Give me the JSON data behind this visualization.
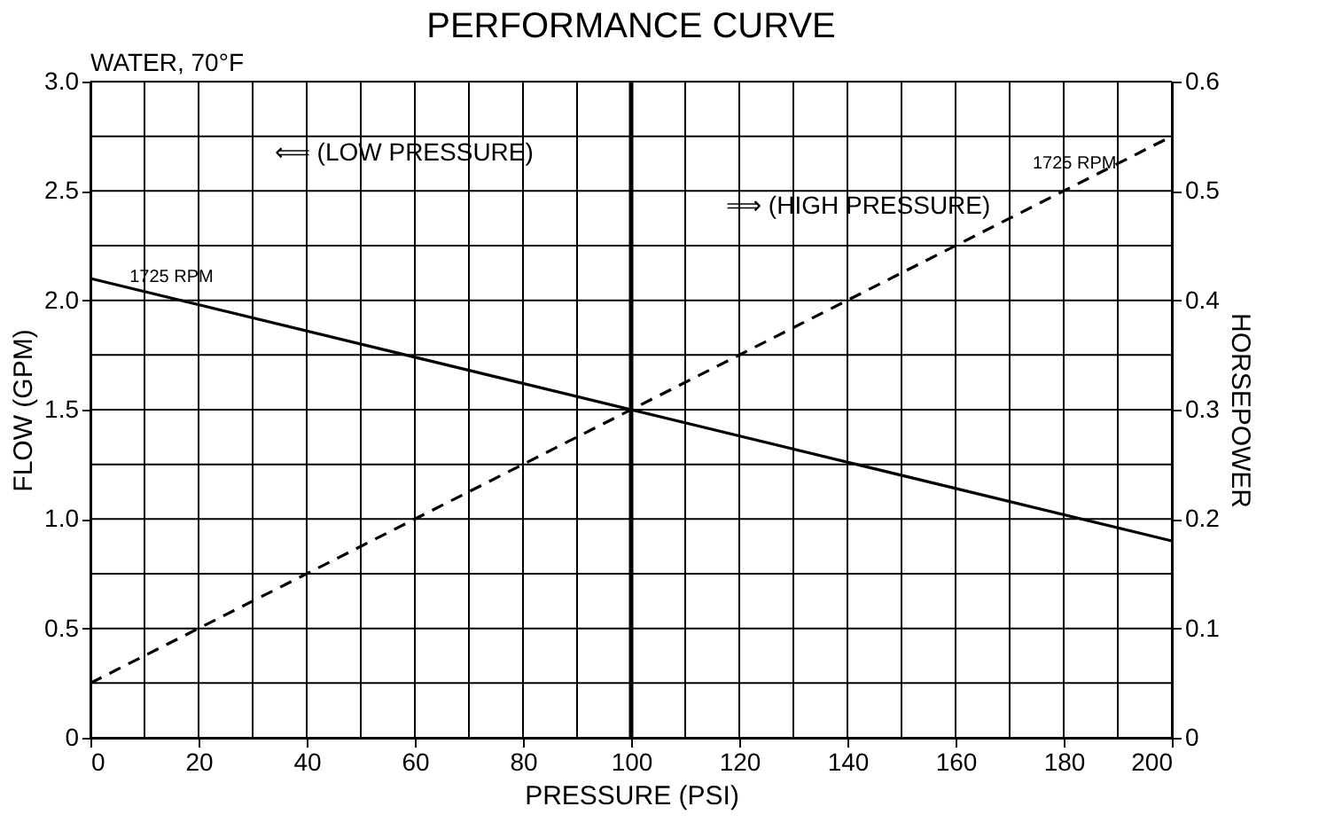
{
  "chart_data": {
    "type": "line",
    "title": "PERFORMANCE CURVE",
    "xlabel": "PRESSURE (PSI)",
    "ylabel": "FLOW (GPM)",
    "y2label": "HORSEPOWER",
    "x": [
      0,
      200
    ],
    "series": [
      {
        "color": "#000000",
        "values": [
          2.1,
          0.9
        ],
        "line_style": "solid"
      },
      {
        "color": "#000000",
        "values": [
          0.05,
          0.55
        ],
        "axis": "y2",
        "line_style": "dashed"
      }
    ],
    "xlim": [
      0,
      200
    ],
    "xticks": [
      0,
      {
        "value": 10,
        "label": null
      },
      20,
      {
        "value": 30,
        "label": null
      },
      40,
      {
        "value": 50,
        "label": null
      },
      60,
      {
        "value": 70,
        "label": null
      },
      80,
      {
        "value": 90,
        "label": null
      },
      100,
      {
        "value": 110,
        "label": null
      },
      120,
      {
        "value": 130,
        "label": null
      },
      140,
      {
        "value": 150,
        "label": null
      },
      160,
      {
        "value": 170,
        "label": null
      },
      180,
      {
        "value": 190,
        "label": null
      },
      200
    ],
    "ylim": [
      0,
      3
    ],
    "yticks": [
      0,
      {
        "value": 0.25,
        "label": null
      },
      0.5,
      {
        "value": 0.75,
        "label": null
      },
      {
        "value": 1,
        "label": "1.0"
      },
      {
        "value": 1.25,
        "label": null
      },
      1.5,
      {
        "value": 1.75,
        "label": null
      },
      {
        "value": 2,
        "label": "2.0"
      },
      {
        "value": 2.25,
        "label": null
      },
      2.5,
      {
        "value": 2.75,
        "label": null
      },
      {
        "value": 3,
        "label": "3.0"
      }
    ],
    "y2lim": [
      0,
      0.6
    ],
    "y2ticks": [
      0,
      0.1,
      0.2,
      0.3,
      0.4,
      0.5,
      0.6
    ],
    "grid": true,
    "ref_lines": [
      {
        "axis": "x",
        "value": 100
      }
    ],
    "annotations": [
      "WATER, 70°F",
      "⟸ (LOW PRESSURE)",
      "⟹ (HIGH PRESSURE)",
      {
        "text": "1725 RPM",
        "x": 15,
        "y": 2.01
      },
      {
        "text": "1725 RPM",
        "x": 182,
        "y": 2.53
      }
    ]
  }
}
